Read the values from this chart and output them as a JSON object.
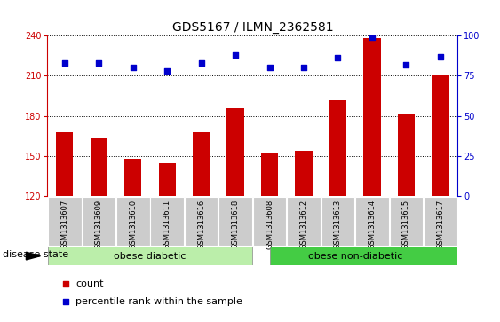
{
  "title": "GDS5167 / ILMN_2362581",
  "samples": [
    "GSM1313607",
    "GSM1313609",
    "GSM1313610",
    "GSM1313611",
    "GSM1313616",
    "GSM1313618",
    "GSM1313608",
    "GSM1313612",
    "GSM1313613",
    "GSM1313614",
    "GSM1313615",
    "GSM1313617"
  ],
  "counts": [
    168,
    163,
    148,
    145,
    168,
    186,
    152,
    154,
    192,
    238,
    181,
    210
  ],
  "percentiles": [
    83,
    83,
    80,
    78,
    83,
    88,
    80,
    80,
    86,
    99,
    82,
    87
  ],
  "ylim_left": [
    120,
    240
  ],
  "ylim_right": [
    0,
    100
  ],
  "yticks_left": [
    120,
    150,
    180,
    210,
    240
  ],
  "yticks_right": [
    0,
    25,
    50,
    75,
    100
  ],
  "bar_color": "#cc0000",
  "dot_color": "#0000cc",
  "bar_bottom": 120,
  "group1_label": "obese diabetic",
  "group2_label": "obese non-diabetic",
  "group1_count": 6,
  "group2_count": 6,
  "group1_color": "#bbeeaa",
  "group2_color": "#44cc44",
  "disease_label": "disease state",
  "legend_count_label": "count",
  "legend_pct_label": "percentile rank within the sample",
  "tick_bg_color": "#cccccc",
  "dotted_line_color": "#000000",
  "title_fontsize": 10,
  "tick_fontsize": 7,
  "label_fontsize": 8,
  "group_fontsize": 8
}
